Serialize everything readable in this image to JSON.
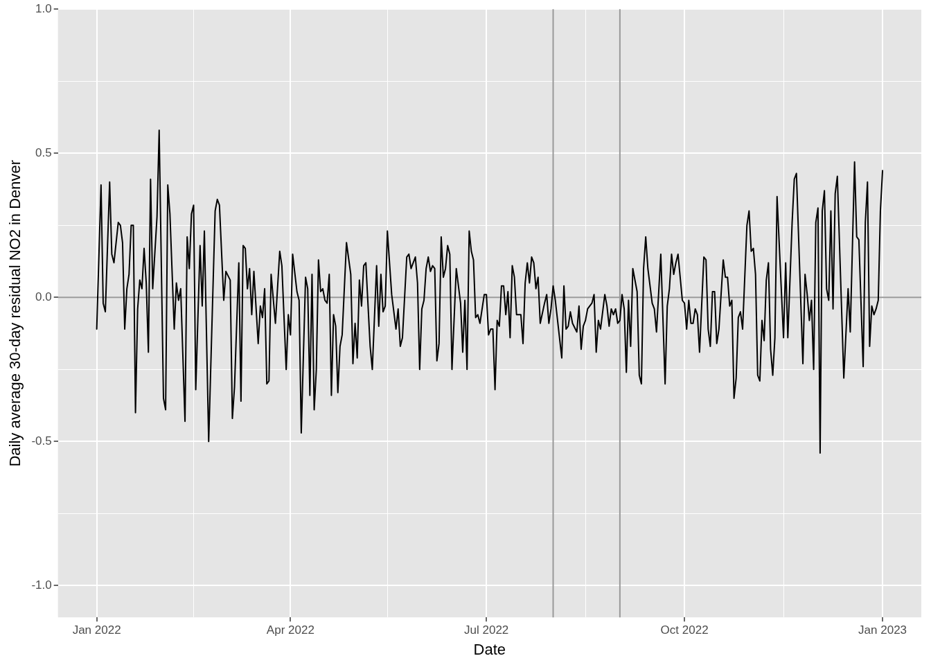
{
  "chart_data": {
    "type": "line",
    "xlabel": "Date",
    "ylabel": "Daily average 30-day residual NO2 in Denver",
    "x": [
      "2022-01-01",
      "2022-01-03",
      "2022-01-04",
      "2022-01-05",
      "2022-01-07",
      "2022-01-08",
      "2022-01-09",
      "2022-01-11",
      "2022-01-12",
      "2022-01-13",
      "2022-01-14",
      "2022-01-15",
      "2022-01-16",
      "2022-01-17",
      "2022-01-18",
      "2022-01-19",
      "2022-01-20",
      "2022-01-21",
      "2022-01-22",
      "2022-01-23",
      "2022-01-24",
      "2022-01-25",
      "2022-01-26",
      "2022-01-27",
      "2022-01-29",
      "2022-01-30",
      "2022-02-01",
      "2022-02-02",
      "2022-02-03",
      "2022-02-04",
      "2022-02-06",
      "2022-02-07",
      "2022-02-08",
      "2022-02-09",
      "2022-02-11",
      "2022-02-12",
      "2022-02-13",
      "2022-02-14",
      "2022-02-15",
      "2022-02-16",
      "2022-02-18",
      "2022-02-19",
      "2022-02-20",
      "2022-02-22",
      "2022-02-25",
      "2022-02-26",
      "2022-02-27",
      "2022-03-01",
      "2022-03-02",
      "2022-03-04",
      "2022-03-05",
      "2022-03-06",
      "2022-03-08",
      "2022-03-09",
      "2022-03-10",
      "2022-03-11",
      "2022-03-12",
      "2022-03-13",
      "2022-03-14",
      "2022-03-15",
      "2022-03-17",
      "2022-03-18",
      "2022-03-19",
      "2022-03-20",
      "2022-03-21",
      "2022-03-22",
      "2022-03-23",
      "2022-03-25",
      "2022-03-27",
      "2022-03-28",
      "2022-03-30",
      "2022-03-31",
      "2022-04-01",
      "2022-04-02",
      "2022-04-04",
      "2022-04-05",
      "2022-04-06",
      "2022-04-08",
      "2022-04-09",
      "2022-04-10",
      "2022-04-11",
      "2022-04-12",
      "2022-04-13",
      "2022-04-14",
      "2022-04-15",
      "2022-04-16",
      "2022-04-17",
      "2022-04-18",
      "2022-04-19",
      "2022-04-20",
      "2022-04-21",
      "2022-04-22",
      "2022-04-23",
      "2022-04-24",
      "2022-04-25",
      "2022-04-27",
      "2022-04-29",
      "2022-04-30",
      "2022-05-01",
      "2022-05-02",
      "2022-05-03",
      "2022-05-04",
      "2022-05-05",
      "2022-05-06",
      "2022-05-08",
      "2022-05-09",
      "2022-05-11",
      "2022-05-12",
      "2022-05-13",
      "2022-05-14",
      "2022-05-15",
      "2022-05-16",
      "2022-05-18",
      "2022-05-20",
      "2022-05-21",
      "2022-05-22",
      "2022-05-23",
      "2022-05-25",
      "2022-05-26",
      "2022-05-27",
      "2022-05-29",
      "2022-05-30",
      "2022-05-31",
      "2022-06-01",
      "2022-06-02",
      "2022-06-03",
      "2022-06-04",
      "2022-06-05",
      "2022-06-06",
      "2022-06-07",
      "2022-06-08",
      "2022-06-09",
      "2022-06-10",
      "2022-06-11",
      "2022-06-12",
      "2022-06-13",
      "2022-06-14",
      "2022-06-15",
      "2022-06-17",
      "2022-06-19",
      "2022-06-20",
      "2022-06-21",
      "2022-06-22",
      "2022-06-23",
      "2022-06-24",
      "2022-06-25",
      "2022-06-26",
      "2022-06-27",
      "2022-06-28",
      "2022-06-30",
      "2022-07-01",
      "2022-07-02",
      "2022-07-03",
      "2022-07-04",
      "2022-07-05",
      "2022-07-06",
      "2022-07-07",
      "2022-07-08",
      "2022-07-09",
      "2022-07-10",
      "2022-07-11",
      "2022-07-12",
      "2022-07-13",
      "2022-07-14",
      "2022-07-15",
      "2022-07-17",
      "2022-07-18",
      "2022-07-19",
      "2022-07-20",
      "2022-07-21",
      "2022-07-22",
      "2022-07-23",
      "2022-07-24",
      "2022-07-25",
      "2022-07-26",
      "2022-07-28",
      "2022-07-29",
      "2022-07-30",
      "2022-07-31",
      "2022-08-01",
      "2022-08-02",
      "2022-08-05",
      "2022-08-06",
      "2022-08-07",
      "2022-08-08",
      "2022-08-09",
      "2022-08-10",
      "2022-08-12",
      "2022-08-13",
      "2022-08-14",
      "2022-08-15",
      "2022-08-16",
      "2022-08-17",
      "2022-08-19",
      "2022-08-20",
      "2022-08-21",
      "2022-08-22",
      "2022-08-23",
      "2022-08-25",
      "2022-08-26",
      "2022-08-27",
      "2022-08-28",
      "2022-08-29",
      "2022-08-30",
      "2022-08-31",
      "2022-09-01",
      "2022-09-02",
      "2022-09-03",
      "2022-09-04",
      "2022-09-05",
      "2022-09-06",
      "2022-09-07",
      "2022-09-09",
      "2022-09-10",
      "2022-09-11",
      "2022-09-12",
      "2022-09-13",
      "2022-09-14",
      "2022-09-16",
      "2022-09-17",
      "2022-09-18",
      "2022-09-20",
      "2022-09-22",
      "2022-09-23",
      "2022-09-24",
      "2022-09-25",
      "2022-09-26",
      "2022-09-27",
      "2022-09-28",
      "2022-09-30",
      "2022-10-01",
      "2022-10-02",
      "2022-10-03",
      "2022-10-04",
      "2022-10-05",
      "2022-10-06",
      "2022-10-07",
      "2022-10-08",
      "2022-10-10",
      "2022-10-11",
      "2022-10-12",
      "2022-10-13",
      "2022-10-14",
      "2022-10-15",
      "2022-10-16",
      "2022-10-17",
      "2022-10-19",
      "2022-10-20",
      "2022-10-21",
      "2022-10-22",
      "2022-10-23",
      "2022-10-24",
      "2022-10-25",
      "2022-10-26",
      "2022-10-27",
      "2022-10-28",
      "2022-10-30",
      "2022-10-31",
      "2022-11-01",
      "2022-11-02",
      "2022-11-03",
      "2022-11-04",
      "2022-11-05",
      "2022-11-06",
      "2022-11-07",
      "2022-11-08",
      "2022-11-09",
      "2022-11-10",
      "2022-11-11",
      "2022-11-12",
      "2022-11-13",
      "2022-11-16",
      "2022-11-17",
      "2022-11-18",
      "2022-11-20",
      "2022-11-21",
      "2022-11-22",
      "2022-11-25",
      "2022-11-26",
      "2022-11-27",
      "2022-11-28",
      "2022-11-29",
      "2022-11-30",
      "2022-12-01",
      "2022-12-02",
      "2022-12-03",
      "2022-12-04",
      "2022-12-05",
      "2022-12-06",
      "2022-12-07",
      "2022-12-08",
      "2022-12-09",
      "2022-12-10",
      "2022-12-11",
      "2022-12-14",
      "2022-12-16",
      "2022-12-17",
      "2022-12-19",
      "2022-12-20",
      "2022-12-21",
      "2022-12-23",
      "2022-12-24",
      "2022-12-25",
      "2022-12-26",
      "2022-12-27",
      "2022-12-28",
      "2022-12-29",
      "2022-12-30",
      "2022-12-31",
      "2023-01-01"
    ],
    "series": [
      {
        "color": "#000000",
        "values": [
          -0.11,
          0.39,
          -0.02,
          -0.05,
          0.4,
          0.15,
          0.12,
          0.26,
          0.25,
          0.19,
          -0.11,
          0.03,
          0.08,
          0.25,
          0.25,
          -0.4,
          -0.04,
          0.06,
          0.03,
          0.17,
          0.05,
          -0.19,
          0.41,
          0.03,
          0.28,
          0.58,
          -0.35,
          -0.39,
          0.39,
          0.29,
          -0.11,
          0.05,
          -0.01,
          0.03,
          -0.43,
          0.21,
          0.1,
          0.29,
          0.32,
          -0.32,
          0.18,
          -0.03,
          0.23,
          -0.5,
          0.3,
          0.34,
          0.32,
          -0.01,
          0.09,
          0.06,
          -0.42,
          -0.31,
          0.12,
          -0.36,
          0.18,
          0.17,
          0.03,
          0.1,
          -0.06,
          0.09,
          -0.16,
          -0.03,
          -0.07,
          0.03,
          -0.3,
          -0.29,
          0.08,
          -0.09,
          0.16,
          0.11,
          -0.25,
          -0.06,
          -0.13,
          0.15,
          0.02,
          -0.01,
          -0.47,
          0.07,
          0.03,
          -0.34,
          0.08,
          -0.39,
          -0.25,
          0.13,
          0.02,
          0.03,
          -0.01,
          -0.02,
          0.08,
          -0.34,
          -0.06,
          -0.1,
          -0.33,
          -0.17,
          -0.13,
          0.19,
          0.08,
          -0.23,
          -0.09,
          -0.21,
          0.06,
          -0.03,
          0.11,
          0.12,
          -0.17,
          -0.25,
          0.11,
          -0.1,
          0.08,
          -0.05,
          -0.03,
          0.23,
          0.01,
          -0.11,
          -0.04,
          -0.17,
          -0.14,
          0.14,
          0.15,
          0.1,
          0.14,
          0.05,
          -0.25,
          -0.04,
          -0.01,
          0.1,
          0.14,
          0.09,
          0.11,
          0.1,
          -0.22,
          -0.16,
          0.21,
          0.07,
          0.1,
          0.18,
          0.15,
          -0.25,
          0.1,
          -0.02,
          -0.19,
          -0.01,
          -0.25,
          0.23,
          0.16,
          0.13,
          -0.07,
          -0.06,
          -0.09,
          0.01,
          0.01,
          -0.13,
          -0.11,
          -0.11,
          -0.32,
          -0.08,
          -0.1,
          0.04,
          0.04,
          -0.06,
          0.02,
          -0.14,
          0.11,
          0.07,
          -0.06,
          -0.06,
          -0.16,
          0.05,
          0.12,
          0.05,
          0.14,
          0.12,
          0.03,
          0.07,
          -0.09,
          -0.02,
          0.01,
          -0.09,
          -0.04,
          0.04,
          -0.01,
          -0.21,
          0.04,
          -0.11,
          -0.1,
          -0.05,
          -0.09,
          -0.12,
          -0.03,
          -0.18,
          -0.1,
          -0.08,
          -0.04,
          -0.02,
          0.01,
          -0.19,
          -0.08,
          -0.11,
          0.01,
          -0.03,
          -0.1,
          -0.04,
          -0.06,
          -0.04,
          -0.09,
          -0.08,
          0.01,
          -0.04,
          -0.26,
          -0.01,
          -0.17,
          0.1,
          0.02,
          -0.27,
          -0.3,
          0.1,
          0.21,
          0.1,
          -0.02,
          -0.04,
          -0.12,
          0.15,
          -0.3,
          -0.03,
          0.03,
          0.15,
          0.08,
          0.12,
          0.15,
          -0.01,
          -0.02,
          -0.11,
          -0.01,
          -0.09,
          -0.09,
          -0.04,
          -0.06,
          -0.19,
          0.14,
          0.13,
          -0.11,
          -0.17,
          0.02,
          0.02,
          -0.16,
          -0.11,
          0.13,
          0.07,
          0.07,
          -0.03,
          -0.01,
          -0.35,
          -0.28,
          -0.07,
          -0.05,
          -0.11,
          0.25,
          0.3,
          0.16,
          0.17,
          0.08,
          -0.27,
          -0.29,
          -0.08,
          -0.15,
          0.06,
          0.12,
          -0.18,
          -0.27,
          -0.14,
          0.35,
          -0.14,
          0.12,
          -0.14,
          0.26,
          0.41,
          0.43,
          -0.23,
          0.08,
          0.01,
          -0.08,
          -0.01,
          -0.25,
          0.26,
          0.31,
          -0.54,
          0.3,
          0.37,
          0.03,
          -0.01,
          0.3,
          -0.04,
          0.36,
          0.42,
          -0.28,
          0.03,
          -0.12,
          0.47,
          0.21,
          0.2,
          -0.24,
          0.26,
          0.4,
          -0.17,
          -0.03,
          -0.06,
          -0.04,
          -0.01,
          0.3,
          0.44
        ]
      }
    ],
    "xlim": [
      "2021-12-14",
      "2023-01-19"
    ],
    "xticks": [
      {
        "value": "2022-01-01",
        "label": "Jan 2022"
      },
      {
        "value": "2022-02-15",
        "label": null
      },
      {
        "value": "2022-04-01",
        "label": "Apr 2022"
      },
      {
        "value": "2022-05-16",
        "label": null
      },
      {
        "value": "2022-07-01",
        "label": "Jul 2022"
      },
      {
        "value": "2022-08-16",
        "label": null
      },
      {
        "value": "2022-10-01",
        "label": "Oct 2022"
      },
      {
        "value": "2022-11-16",
        "label": null
      },
      {
        "value": "2023-01-01",
        "label": "Jan 2023"
      }
    ],
    "ylim": [
      -1.11,
      1.0
    ],
    "yticks": [
      {
        "value": -1,
        "label": "-1.0"
      },
      {
        "value": -0.75,
        "label": null
      },
      {
        "value": -0.5,
        "label": "-0.5"
      },
      {
        "value": -0.25,
        "label": null
      },
      {
        "value": 0,
        "label": "0.0"
      },
      {
        "value": 0.25,
        "label": null
      },
      {
        "value": 0.5,
        "label": "0.5"
      },
      {
        "value": 0.75,
        "label": null
      },
      {
        "value": 1,
        "label": "1.0"
      }
    ],
    "grid": true,
    "ref_lines": [
      {
        "axis": "y",
        "value": 0,
        "color": "#999999"
      },
      {
        "axis": "x",
        "value": "2022-08-01",
        "color": "#999999"
      },
      {
        "axis": "x",
        "value": "2022-09-01",
        "color": "#999999"
      }
    ]
  }
}
